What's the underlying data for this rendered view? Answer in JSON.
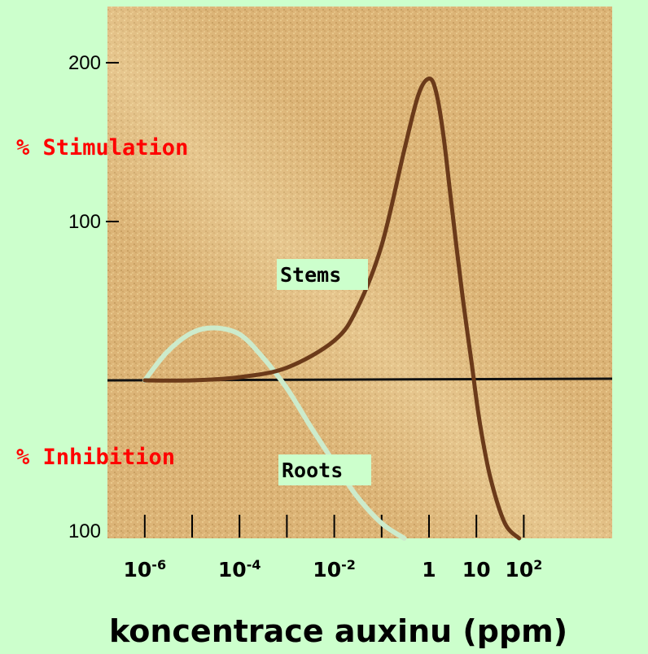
{
  "chart_data": {
    "type": "line",
    "ylabel_top": "% Stimulation",
    "ylabel_bottom": "% Inhibition",
    "xlabel": "koncentrace auxinu (ppm)",
    "x_scale": "log10",
    "x_ticks": [
      {
        "value": 1e-06,
        "label_base": "10",
        "label_exp": "-6"
      },
      {
        "value": 0.0001,
        "label_base": "10",
        "label_exp": "-4"
      },
      {
        "value": 0.01,
        "label_base": "10",
        "label_exp": "-2"
      },
      {
        "value": 1,
        "label_base": "1",
        "label_exp": ""
      },
      {
        "value": 10,
        "label_base": "10",
        "label_exp": ""
      },
      {
        "value": 100,
        "label_base": "10",
        "label_exp": "2"
      }
    ],
    "y_ticks": [
      {
        "value": 200,
        "label": "200"
      },
      {
        "value": 100,
        "label": "100"
      },
      {
        "value": -100,
        "label": "100"
      }
    ],
    "xlim": [
      1e-07,
      1000
    ],
    "ylim": [
      -100,
      230
    ],
    "series": [
      {
        "name": "Stems",
        "color": "#6b3a1a",
        "x": [
          1e-06,
          1e-05,
          0.0001,
          0.001,
          0.01,
          0.03,
          0.1,
          0.3,
          0.6,
          1,
          1.4,
          2,
          3,
          5,
          8,
          12,
          20,
          40,
          80
        ],
        "y": [
          0,
          0,
          2,
          8,
          25,
          45,
          85,
          145,
          180,
          190,
          182,
          155,
          110,
          55,
          10,
          -28,
          -62,
          -90,
          -100
        ]
      },
      {
        "name": "Roots",
        "color": "#ccebcc",
        "x": [
          1e-06,
          3e-06,
          1e-05,
          3e-05,
          0.0001,
          0.0003,
          0.001,
          0.003,
          0.01,
          0.03,
          0.1,
          0.3
        ],
        "y": [
          0,
          18,
          30,
          33,
          29,
          15,
          -5,
          -28,
          -52,
          -73,
          -90,
          -100
        ]
      }
    ]
  }
}
